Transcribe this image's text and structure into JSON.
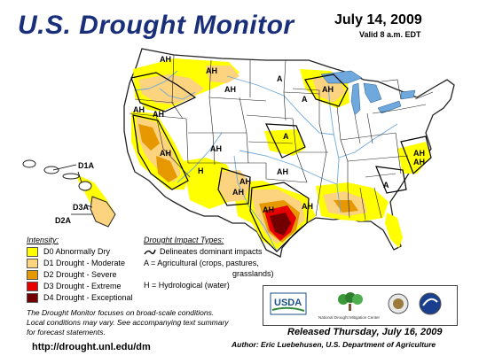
{
  "header": {
    "title": "U.S. Drought Monitor",
    "date": "July 14, 2009",
    "valid": "Valid 8 a.m. EDT"
  },
  "colors": {
    "D0": "#ffff00",
    "D1": "#fcd37f",
    "D2": "#e69800",
    "D3": "#e60000",
    "D4": "#730000",
    "water": "#6fa8dc",
    "boundary": "#222222"
  },
  "map": {
    "impact_labels": [
      "AH",
      "AH",
      "A",
      "AH",
      "AH",
      "A",
      "AH",
      "AH",
      "AH",
      "AH",
      "H",
      "A",
      "AH",
      "AH",
      "AH",
      "A",
      "AH",
      "AH",
      "AH",
      "AH"
    ],
    "hawaii_labels": [
      "D1A",
      "D3A",
      "D2A"
    ]
  },
  "legend": {
    "intensity_title": "Intensity:",
    "items": [
      {
        "label": "D0 Abnormally Dry",
        "color": "#ffff00"
      },
      {
        "label": "D1 Drought - Moderate",
        "color": "#fcd37f"
      },
      {
        "label": "D2 Drought - Severe",
        "color": "#e69800"
      },
      {
        "label": "D3 Drought - Extreme",
        "color": "#e60000"
      },
      {
        "label": "D4 Drought - Exceptional",
        "color": "#730000"
      }
    ],
    "impact_title": "Drought Impact Types:",
    "impact_lines": [
      "Delineates dominant impacts",
      "A = Agricultural (crops, pastures,",
      "grasslands)",
      "H = Hydrological (water)"
    ]
  },
  "note": [
    "The Drought Monitor focuses on broad-scale conditions.",
    "Local conditions may vary. See accompanying text summary",
    "for forecast statements."
  ],
  "footer": {
    "url": "http://drought.unl.edu/dm",
    "released": "Released Thursday, July 16, 2009",
    "author": "Author: Eric Luebehusen, U.S. Department of Agriculture",
    "logos": {
      "usda": "USDA",
      "ndmc": "National Drought Mitigation Center"
    }
  }
}
